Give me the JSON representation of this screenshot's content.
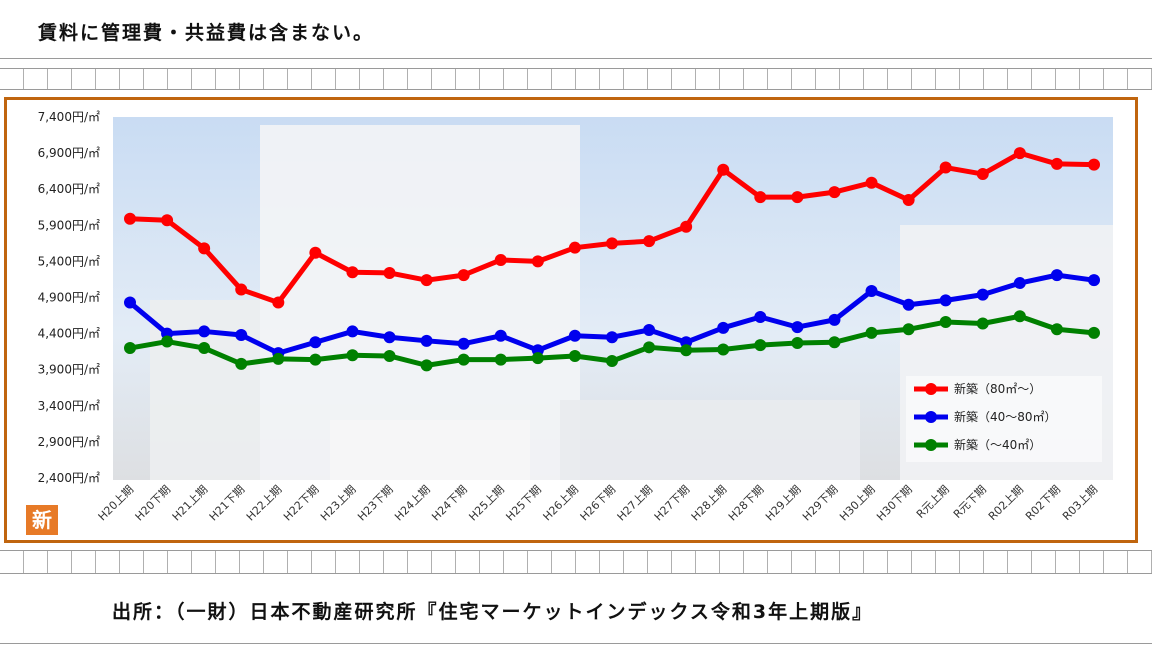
{
  "header_note": "賃料に管理費・共益費は含まない。",
  "source_text": "出所：（一財）日本不動産研究所『住宅マーケットインデックス令和3年上期版』",
  "badge": "新",
  "chart_data": {
    "type": "line",
    "title": "",
    "xlabel": "",
    "ylabel": "",
    "ylim": [
      2400,
      7400
    ],
    "y_ticks": [
      "2,400円/㎡",
      "2,900円/㎡",
      "3,400円/㎡",
      "3,900円/㎡",
      "4,400円/㎡",
      "4,900円/㎡",
      "5,400円/㎡",
      "5,900円/㎡",
      "6,400円/㎡",
      "6,900円/㎡",
      "7,400円/㎡"
    ],
    "categories": [
      "H20上期",
      "H20下期",
      "H21上期",
      "H21下期",
      "H22上期",
      "H22下期",
      "H23上期",
      "H23下期",
      "H24上期",
      "H24下期",
      "H25上期",
      "H25下期",
      "H26上期",
      "H26下期",
      "H27上期",
      "H27下期",
      "H28上期",
      "H28下期",
      "H29上期",
      "H29下期",
      "H30上期",
      "H30下期",
      "R元上期",
      "R元下期",
      "R02上期",
      "R02下期",
      "R03上期"
    ],
    "series": [
      {
        "name": "新築（80㎡～）",
        "color": "#ff0000",
        "values": [
          5990,
          5970,
          5580,
          5010,
          4830,
          5520,
          5250,
          5240,
          5140,
          5210,
          5420,
          5400,
          5590,
          5650,
          5680,
          5880,
          6670,
          6290,
          6290,
          6360,
          6490,
          6250,
          6700,
          6610,
          6900,
          6750,
          6740
        ]
      },
      {
        "name": "新築（40～80㎡）",
        "color": "#0000ee",
        "values": [
          4830,
          4400,
          4430,
          4380,
          4130,
          4280,
          4430,
          4350,
          4300,
          4260,
          4370,
          4170,
          4370,
          4350,
          4450,
          4280,
          4480,
          4630,
          4490,
          4590,
          4990,
          4800,
          4860,
          4940,
          5100,
          5210,
          5140
        ]
      },
      {
        "name": "新築（～40㎡）",
        "color": "#008000",
        "values": [
          4200,
          4290,
          4200,
          3980,
          4050,
          4040,
          4100,
          4090,
          3960,
          4040,
          4040,
          4060,
          4090,
          4020,
          4210,
          4170,
          4180,
          4240,
          4270,
          4280,
          4410,
          4460,
          4560,
          4540,
          4640,
          4460,
          4410
        ]
      }
    ],
    "legend_position": "lower-right",
    "grid": false
  }
}
